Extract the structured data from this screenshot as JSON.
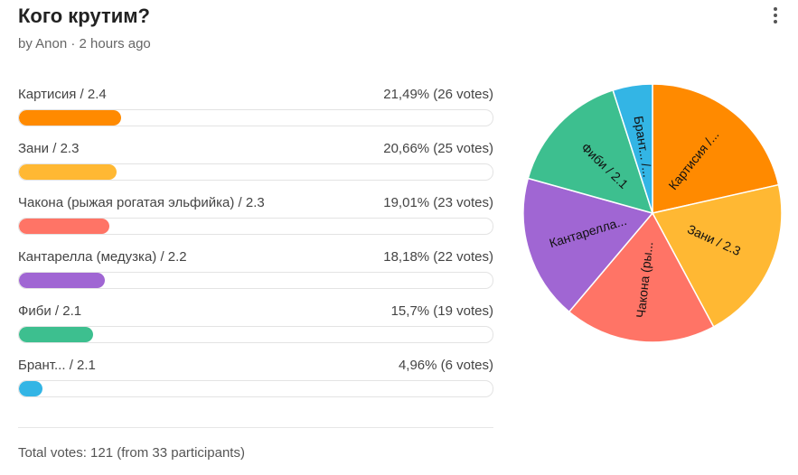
{
  "poll": {
    "title": "Кого крутим?",
    "meta": "by Anon · 2 hours ago",
    "total": "Total votes: 121 (from 33 participants)"
  },
  "chart_data": {
    "type": "pie",
    "categories": [
      "Картисия / 2.4",
      "Зани / 2.3",
      "Чакона (рыжая рогатая эльфийка) / 2.3",
      "Кантарелла (медузка) / 2.2",
      "Фиби / 2.1",
      "Брант... / 2.1"
    ],
    "values": [
      26,
      25,
      23,
      22,
      19,
      6
    ],
    "percents": [
      "21,49%",
      "20,66%",
      "19,01%",
      "18,18%",
      "15,7%",
      "4,96%"
    ],
    "slice_labels": [
      "Картисия /...",
      "Зани / 2.3",
      "Чакона (ры...",
      "Кантарелла...",
      "Фиби / 2.1",
      "Брант... /..."
    ],
    "colors": [
      "#ff8a00",
      "#ffb833",
      "#ff7466",
      "#a066d3",
      "#3dbf8f",
      "#33b5e5"
    ]
  },
  "options": [
    {
      "label": "Картисия / 2.4",
      "result": "21,49% (26 votes)",
      "fraction": 0.2149,
      "color": "#ff8a00"
    },
    {
      "label": "Зани / 2.3",
      "result": "20,66% (25 votes)",
      "fraction": 0.2066,
      "color": "#ffb833"
    },
    {
      "label": "Чакона (рыжая рогатая эльфийка) / 2.3",
      "result": "19,01% (23 votes)",
      "fraction": 0.1901,
      "color": "#ff7466"
    },
    {
      "label": "Кантарелла (медузка) / 2.2",
      "result": "18,18% (22 votes)",
      "fraction": 0.1818,
      "color": "#a066d3"
    },
    {
      "label": "Фиби / 2.1",
      "result": "15,7% (19 votes)",
      "fraction": 0.157,
      "color": "#3dbf8f"
    },
    {
      "label": "Брант... / 2.1",
      "result": "4,96% (6 votes)",
      "fraction": 0.0496,
      "color": "#33b5e5"
    }
  ]
}
